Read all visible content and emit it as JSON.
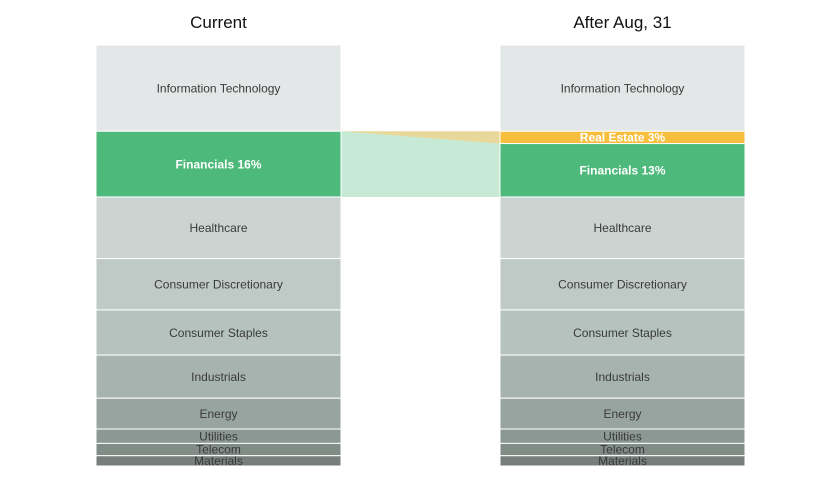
{
  "chart_data": {
    "type": "stacked-column-comparison",
    "title": "",
    "columns": [
      {
        "title": "Current",
        "segments": [
          {
            "label": "Information Technology",
            "value": 21,
            "color": "#e4e7e7"
          },
          {
            "label": "Financials 16%",
            "value": 16,
            "color": "#4db97a",
            "highlight": true
          },
          {
            "label": "Healthcare",
            "value": 15,
            "color": "#cbd4d1"
          },
          {
            "label": "Consumer Discretionary",
            "value": 12.5,
            "color": "#bfcac6"
          },
          {
            "label": "Consumer Staples",
            "value": 11,
            "color": "#b6c2bd"
          },
          {
            "label": "Industrials",
            "value": 10.5,
            "color": "#a7b3af"
          },
          {
            "label": "Energy",
            "value": 7.5,
            "color": "#98a49f"
          },
          {
            "label": "Utilities",
            "value": 3.5,
            "color": "#8c9893"
          },
          {
            "label": "Telecom",
            "value": 3,
            "color": "#818c87"
          },
          {
            "label": "Materials",
            "value": 2.5,
            "color": "#767f7b"
          }
        ]
      },
      {
        "title": "After Aug, 31",
        "segments": [
          {
            "label": "Information Technology",
            "value": 21,
            "color": "#e4e7e7"
          },
          {
            "label": "Real Estate 3%",
            "value": 3,
            "color": "#f8bf3e",
            "highlight": true
          },
          {
            "label": "Financials 13%",
            "value": 13,
            "color": "#4db97a",
            "highlight": true
          },
          {
            "label": "Healthcare",
            "value": 15,
            "color": "#cbd4d1"
          },
          {
            "label": "Consumer Discretionary",
            "value": 12.5,
            "color": "#bfcac6"
          },
          {
            "label": "Consumer Staples",
            "value": 11,
            "color": "#b6c2bd"
          },
          {
            "label": "Industrials",
            "value": 10.5,
            "color": "#a7b3af"
          },
          {
            "label": "Energy",
            "value": 7.5,
            "color": "#98a49f"
          },
          {
            "label": "Utilities",
            "value": 3.5,
            "color": "#8c9893"
          },
          {
            "label": "Telecom",
            "value": 3,
            "color": "#818c87"
          },
          {
            "label": "Materials",
            "value": 2.5,
            "color": "#767f7b"
          }
        ]
      }
    ],
    "connectors": [
      {
        "from_segment": "Financials 16%",
        "to_segment": "Real Estate 3%",
        "color": "#e8d99a"
      },
      {
        "from_segment": "Financials 16%",
        "to_segment": "Financials 13%",
        "color": "#c7ead6"
      }
    ]
  }
}
